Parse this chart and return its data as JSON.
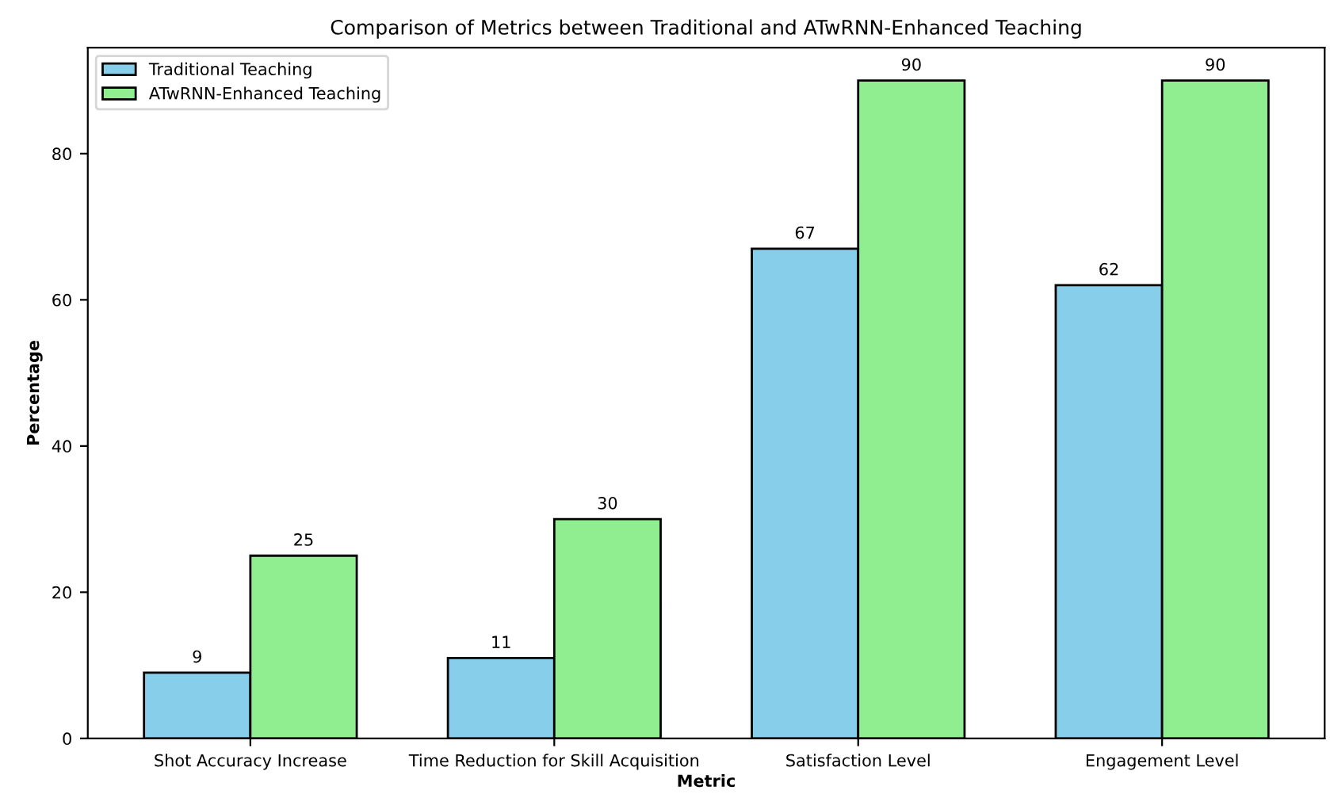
{
  "chart_data": {
    "type": "bar",
    "title": "Comparison of Metrics between Traditional and ATwRNN-Enhanced Teaching",
    "xlabel": "Metric",
    "ylabel": "Percentage",
    "categories": [
      "Shot Accuracy Increase",
      "Time Reduction for Skill Acquisition",
      "Satisfaction Level",
      "Engagement Level"
    ],
    "series": [
      {
        "name": "Traditional Teaching",
        "color": "#87ceeb",
        "values": [
          9,
          11,
          67,
          62
        ]
      },
      {
        "name": "ATwRNN-Enhanced Teaching",
        "color": "#90ee90",
        "values": [
          25,
          30,
          90,
          90
        ]
      }
    ],
    "ylim": [
      0,
      94.5
    ],
    "yticks": [
      0,
      20,
      40,
      60,
      80
    ],
    "data_labels": true,
    "legend": "top left",
    "grid": false
  }
}
